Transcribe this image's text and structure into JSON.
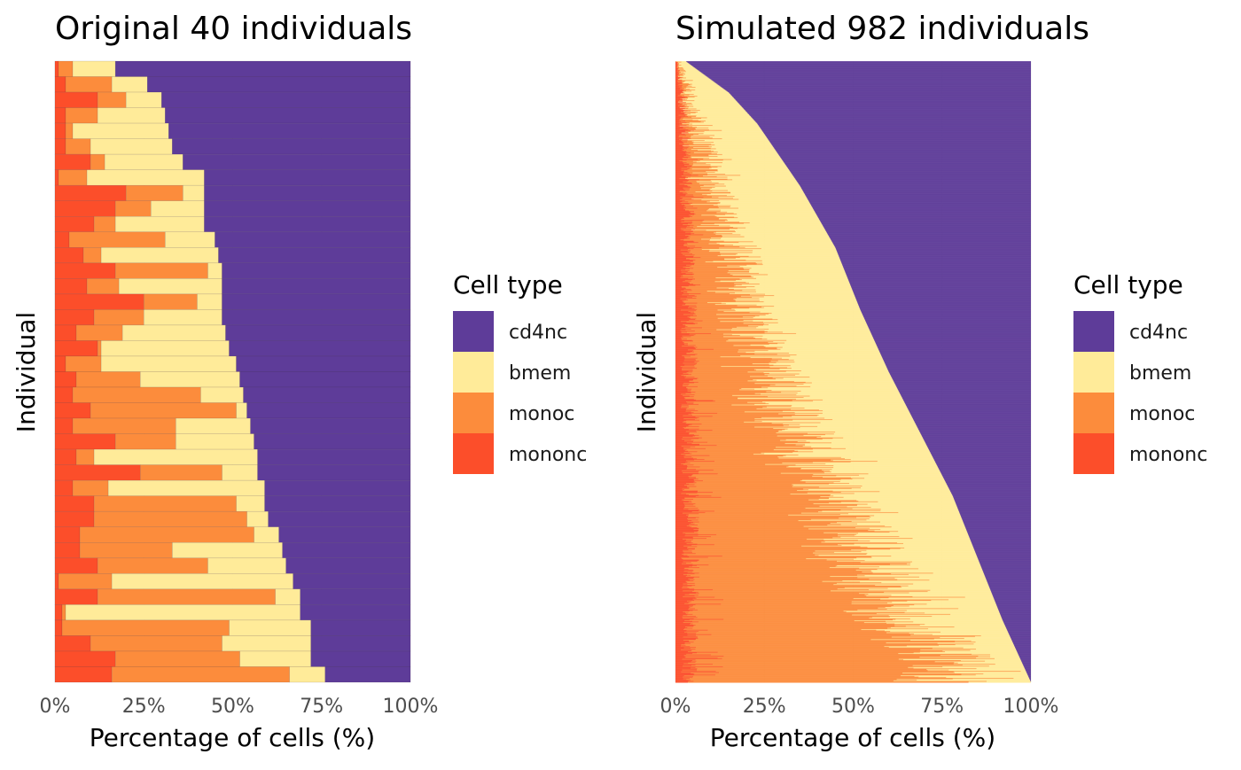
{
  "colors": {
    "cd4nc": "#5e3c99",
    "bmem": "#ffeb99",
    "monoc": "#fc8c3c",
    "mononc": "#fc4e2a"
  },
  "chart_data": [
    {
      "type": "bar",
      "orientation": "horizontal",
      "stacked": true,
      "title": "Original 40 individuals",
      "xlabel": "Percentage of cells (%)",
      "ylabel": "Individual",
      "xlim": [
        0,
        100
      ],
      "xticks": [
        "0%",
        "25%",
        "50%",
        "75%",
        "100%"
      ],
      "legend": {
        "title": "Cell type",
        "position": "right",
        "entries": [
          "cd4nc",
          "bmem",
          "monoc",
          "mononc"
        ]
      },
      "series_order": [
        "mononc",
        "monoc",
        "bmem",
        "cd4nc"
      ],
      "rows": [
        {
          "mononc": 1,
          "monoc": 4,
          "bmem": 12,
          "cd4nc": 83
        },
        {
          "mononc": 3,
          "monoc": 13,
          "bmem": 10,
          "cd4nc": 74
        },
        {
          "mononc": 12,
          "monoc": 8,
          "bmem": 10,
          "cd4nc": 70
        },
        {
          "mononc": 3,
          "monoc": 9,
          "bmem": 19,
          "cd4nc": 69
        },
        {
          "mononc": 3,
          "monoc": 2,
          "bmem": 27,
          "cd4nc": 68
        },
        {
          "mononc": 3,
          "monoc": 7,
          "bmem": 23,
          "cd4nc": 67
        },
        {
          "mononc": 10,
          "monoc": 4,
          "bmem": 22,
          "cd4nc": 64
        },
        {
          "mononc": 1,
          "monoc": 8,
          "bmem": 33,
          "cd4nc": 58
        },
        {
          "mononc": 20,
          "monoc": 16,
          "bmem": 6,
          "cd4nc": 58
        },
        {
          "mononc": 17,
          "monoc": 10,
          "bmem": 15,
          "cd4nc": 58
        },
        {
          "mononc": 11,
          "monoc": 6,
          "bmem": 25,
          "cd4nc": 58
        },
        {
          "mononc": 4,
          "monoc": 27,
          "bmem": 14,
          "cd4nc": 55
        },
        {
          "mononc": 8,
          "monoc": 5,
          "bmem": 33,
          "cd4nc": 54
        },
        {
          "mononc": 17,
          "monoc": 26,
          "bmem": 4,
          "cd4nc": 53
        },
        {
          "mononc": 9,
          "monoc": 9,
          "bmem": 29,
          "cd4nc": 53
        },
        {
          "mononc": 25,
          "monoc": 15,
          "bmem": 7,
          "cd4nc": 53
        },
        {
          "mononc": 11,
          "monoc": 14,
          "bmem": 22,
          "cd4nc": 53
        },
        {
          "mononc": 6,
          "monoc": 13,
          "bmem": 29,
          "cd4nc": 52
        },
        {
          "mononc": 12,
          "monoc": 1,
          "bmem": 36,
          "cd4nc": 51
        },
        {
          "mononc": 3,
          "monoc": 10,
          "bmem": 38,
          "cd4nc": 49
        },
        {
          "mononc": 6,
          "monoc": 18,
          "bmem": 28,
          "cd4nc": 48
        },
        {
          "mononc": 5,
          "monoc": 36,
          "bmem": 12,
          "cd4nc": 47
        },
        {
          "mononc": 10,
          "monoc": 41,
          "bmem": 3,
          "cd4nc": 46
        },
        {
          "mononc": 5,
          "monoc": 29,
          "bmem": 21,
          "cd4nc": 45
        },
        {
          "mononc": 17,
          "monoc": 17,
          "bmem": 22,
          "cd4nc": 44
        },
        {
          "mononc": 6,
          "monoc": 5,
          "bmem": 46,
          "cd4nc": 43
        },
        {
          "mononc": 24,
          "monoc": 23,
          "bmem": 10,
          "cd4nc": 43
        },
        {
          "mononc": 5,
          "monoc": 10,
          "bmem": 44,
          "cd4nc": 41
        },
        {
          "mononc": 11,
          "monoc": 40,
          "bmem": 8,
          "cd4nc": 41
        },
        {
          "mononc": 11,
          "monoc": 43,
          "bmem": 6,
          "cd4nc": 40
        },
        {
          "mononc": 7,
          "monoc": 49,
          "bmem": 7,
          "cd4nc": 37
        },
        {
          "mononc": 7,
          "monoc": 26,
          "bmem": 31,
          "cd4nc": 36
        },
        {
          "mononc": 12,
          "monoc": 31,
          "bmem": 22,
          "cd4nc": 35
        },
        {
          "mononc": 1,
          "monoc": 15,
          "bmem": 51,
          "cd4nc": 33
        },
        {
          "mononc": 12,
          "monoc": 50,
          "bmem": 7,
          "cd4nc": 31
        },
        {
          "mononc": 2,
          "monoc": 1,
          "bmem": 66,
          "cd4nc": 31
        },
        {
          "mononc": 2,
          "monoc": 47,
          "bmem": 23,
          "cd4nc": 28
        },
        {
          "mononc": 10,
          "monoc": 37,
          "bmem": 25,
          "cd4nc": 28
        },
        {
          "mononc": 17,
          "monoc": 35,
          "bmem": 20,
          "cd4nc": 28
        },
        {
          "mononc": 16,
          "monoc": 50,
          "bmem": 10,
          "cd4nc": 24
        }
      ]
    },
    {
      "type": "bar",
      "orientation": "horizontal",
      "stacked": true,
      "title": "Simulated 982 individuals",
      "xlabel": "Percentage of cells (%)",
      "ylabel": "Individual",
      "xlim": [
        0,
        100
      ],
      "xticks": [
        "0%",
        "25%",
        "50%",
        "75%",
        "100%"
      ],
      "legend": {
        "title": "Cell type",
        "position": "right",
        "entries": [
          "cd4nc",
          "bmem",
          "monoc",
          "mononc"
        ]
      },
      "series_order": [
        "mononc",
        "monoc",
        "bmem",
        "cd4nc"
      ],
      "n_individuals": 982,
      "profile": {
        "description_points": "non-cd4nc share (%) at relative row positions from top (0) to bottom (1)",
        "positions": [
          0,
          0.05,
          0.1,
          0.2,
          0.3,
          0.4,
          0.5,
          0.6,
          0.7,
          0.8,
          0.9,
          1
        ],
        "non_cd4nc": [
          3,
          15,
          23,
          35,
          45,
          52,
          60,
          69,
          78,
          85,
          92,
          100
        ],
        "monoc_fraction_of_non_cd4nc": [
          0.12,
          0.14,
          0.16,
          0.2,
          0.25,
          0.3,
          0.36,
          0.42,
          0.5,
          0.58,
          0.66,
          0.75
        ],
        "mononc_fraction_of_non_cd4nc": [
          0.12,
          0.1,
          0.09,
          0.08,
          0.07,
          0.065,
          0.06,
          0.055,
          0.05,
          0.045,
          0.04,
          0.035
        ]
      }
    }
  ]
}
